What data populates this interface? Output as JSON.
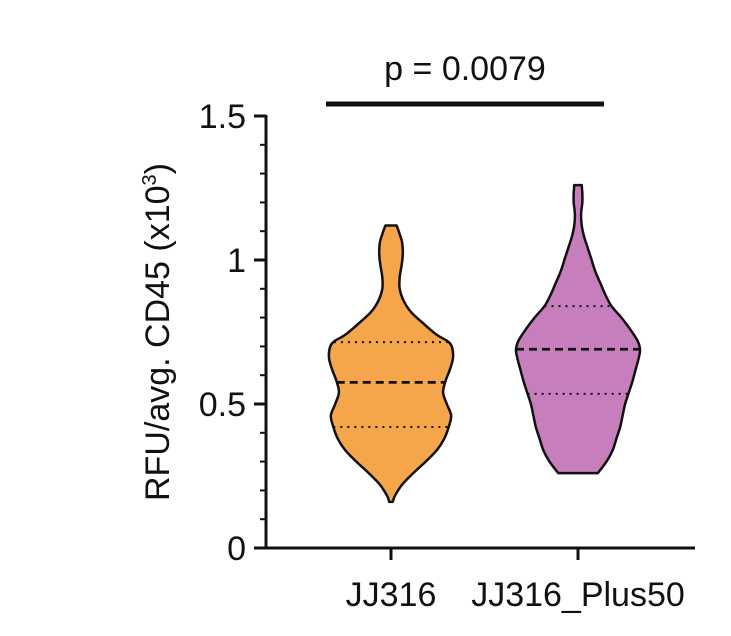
{
  "chart_data": {
    "type": "violin",
    "ylabel": {
      "main": "RFU/avg. CD45 (x10",
      "sup": "3",
      "close": ")"
    },
    "ylim": [
      0,
      1.5
    ],
    "yticks": [
      0,
      0.5,
      1,
      1.5
    ],
    "ytick_labels": [
      "0",
      "0.5",
      "1",
      "1.5"
    ],
    "categories": [
      "JJ316",
      "JJ316_Plus50"
    ],
    "grid": false,
    "legend": "none",
    "annotation": {
      "text": "p = 0.0079",
      "from": 0,
      "to": 1
    },
    "violins": [
      {
        "category": "JJ316",
        "color": "#F5A54A",
        "min": 0.16,
        "max": 1.12,
        "q1": 0.42,
        "median": 0.575,
        "q3": 0.715,
        "profile": [
          [
            0.16,
            0.03
          ],
          [
            0.18,
            0.06
          ],
          [
            0.22,
            0.18
          ],
          [
            0.26,
            0.36
          ],
          [
            0.3,
            0.56
          ],
          [
            0.34,
            0.74
          ],
          [
            0.38,
            0.86
          ],
          [
            0.42,
            0.93
          ],
          [
            0.46,
            0.97
          ],
          [
            0.5,
            0.9
          ],
          [
            0.54,
            0.84
          ],
          [
            0.58,
            0.88
          ],
          [
            0.62,
            0.95
          ],
          [
            0.66,
            1.0
          ],
          [
            0.7,
            0.98
          ],
          [
            0.72,
            0.9
          ],
          [
            0.74,
            0.74
          ],
          [
            0.78,
            0.52
          ],
          [
            0.82,
            0.32
          ],
          [
            0.86,
            0.2
          ],
          [
            0.9,
            0.14
          ],
          [
            0.94,
            0.14
          ],
          [
            0.98,
            0.17
          ],
          [
            1.02,
            0.19
          ],
          [
            1.06,
            0.18
          ],
          [
            1.09,
            0.14
          ],
          [
            1.12,
            0.09
          ]
        ]
      },
      {
        "category": "JJ316_Plus50",
        "color": "#C67EBD",
        "min": 0.26,
        "max": 1.26,
        "q1": 0.535,
        "median": 0.69,
        "q3": 0.84,
        "profile": [
          [
            0.26,
            0.32
          ],
          [
            0.3,
            0.46
          ],
          [
            0.34,
            0.56
          ],
          [
            0.38,
            0.62
          ],
          [
            0.42,
            0.68
          ],
          [
            0.46,
            0.72
          ],
          [
            0.5,
            0.76
          ],
          [
            0.54,
            0.82
          ],
          [
            0.58,
            0.88
          ],
          [
            0.62,
            0.93
          ],
          [
            0.66,
            0.98
          ],
          [
            0.69,
            1.0
          ],
          [
            0.72,
            0.96
          ],
          [
            0.76,
            0.84
          ],
          [
            0.8,
            0.7
          ],
          [
            0.84,
            0.54
          ],
          [
            0.88,
            0.44
          ],
          [
            0.92,
            0.36
          ],
          [
            0.96,
            0.28
          ],
          [
            1.0,
            0.22
          ],
          [
            1.04,
            0.16
          ],
          [
            1.08,
            0.1
          ],
          [
            1.12,
            0.06
          ],
          [
            1.16,
            0.05
          ],
          [
            1.2,
            0.07
          ],
          [
            1.23,
            0.07
          ],
          [
            1.26,
            0.06
          ]
        ]
      }
    ]
  }
}
